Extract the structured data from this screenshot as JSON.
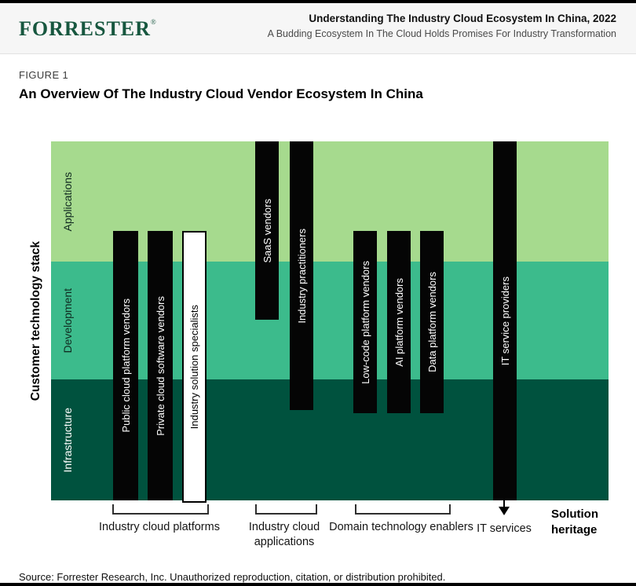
{
  "header": {
    "logo": "FORRESTER",
    "logo_mark": "®",
    "title": "Understanding The Industry Cloud Ecosystem In China, 2022",
    "subtitle": "A Budding Ecosystem In The Cloud Holds Promises For Industry Transformation"
  },
  "figure": {
    "label": "FIGURE 1",
    "title": "An Overview Of The Industry Cloud Vendor Ecosystem In China"
  },
  "chart_data": {
    "type": "diagram",
    "description": "Vertical vendor bars overlaid on a three-band customer technology stack; bar vertical extent shows which stack layers each vendor type covers.",
    "y_axis_label": "Customer technology stack",
    "bands": [
      {
        "name": "Applications",
        "color": "#a6da8e",
        "text_color": "#102a20"
      },
      {
        "name": "Development",
        "color": "#3cbb8c",
        "text_color": "#102a20"
      },
      {
        "name": "Infrastructure",
        "color": "#00523e",
        "text_color": "#ffffff"
      }
    ],
    "bars": [
      {
        "label": "Public cloud platform vendors",
        "group": "Industry cloud platforms",
        "style": "black",
        "top_band": "Applications (lower part)",
        "bottom_band": "Infrastructure (full)"
      },
      {
        "label": "Private cloud software vendors",
        "group": "Industry cloud platforms",
        "style": "black",
        "top_band": "Applications (lower part)",
        "bottom_band": "Infrastructure (full)"
      },
      {
        "label": "Industry solution specialists",
        "group": "Industry cloud platforms",
        "style": "white-outlined",
        "top_band": "Applications (lower part)",
        "bottom_band": "Infrastructure (full)"
      },
      {
        "label": "SaaS vendors",
        "group": "Industry cloud applications",
        "style": "black",
        "top_band": "Applications (top)",
        "bottom_band": "Development (middle)"
      },
      {
        "label": "Industry practitioners",
        "group": "Industry cloud applications",
        "style": "black",
        "top_band": "Applications (top)",
        "bottom_band": "Infrastructure (upper part)"
      },
      {
        "label": "Low-code platform vendors",
        "group": "Domain technology enablers",
        "style": "black",
        "top_band": "Applications (lower part)",
        "bottom_band": "Infrastructure (upper part)"
      },
      {
        "label": "AI platform vendors",
        "group": "Domain technology enablers",
        "style": "black",
        "top_band": "Applications (lower part)",
        "bottom_band": "Infrastructure (upper part)"
      },
      {
        "label": "Data platform vendors",
        "group": "Domain technology enablers",
        "style": "black",
        "top_band": "Applications (lower part)",
        "bottom_band": "Infrastructure (upper part)"
      },
      {
        "label": "IT service providers",
        "group": "IT services",
        "style": "black",
        "top_band": "Applications (top)",
        "bottom_band": "Infrastructure (full, arrow continues below)"
      }
    ],
    "groups": [
      {
        "label": "Industry cloud platforms"
      },
      {
        "label": "Industry cloud applications"
      },
      {
        "label": "Domain technology enablers"
      },
      {
        "label": "IT services"
      }
    ],
    "solution_heritage": "Solution heritage",
    "accent_colors": {
      "bar_black": "#050505",
      "bracket": "#2f2f2f"
    }
  },
  "footer": {
    "source": "Source: Forrester Research, Inc. Unauthorized reproduction, citation, or distribution prohibited."
  }
}
